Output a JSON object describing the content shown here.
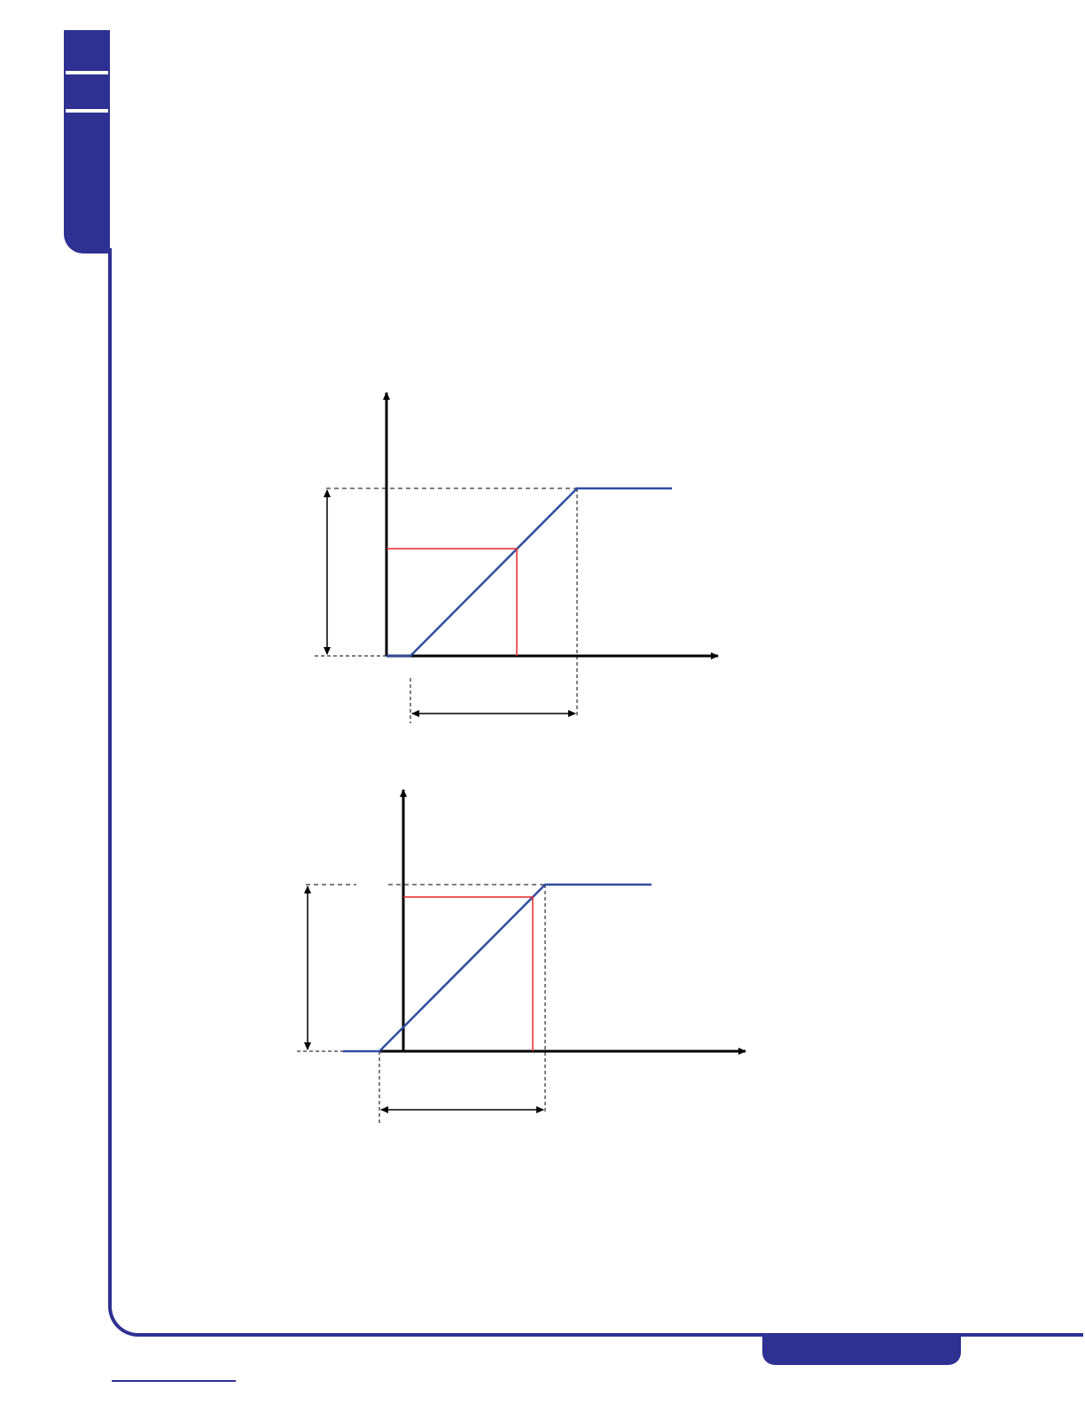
{
  "colors": {
    "brand": "#2e3192",
    "curve": "#2e4fa0",
    "guide": "#e8262a",
    "axis": "#000000"
  }
}
